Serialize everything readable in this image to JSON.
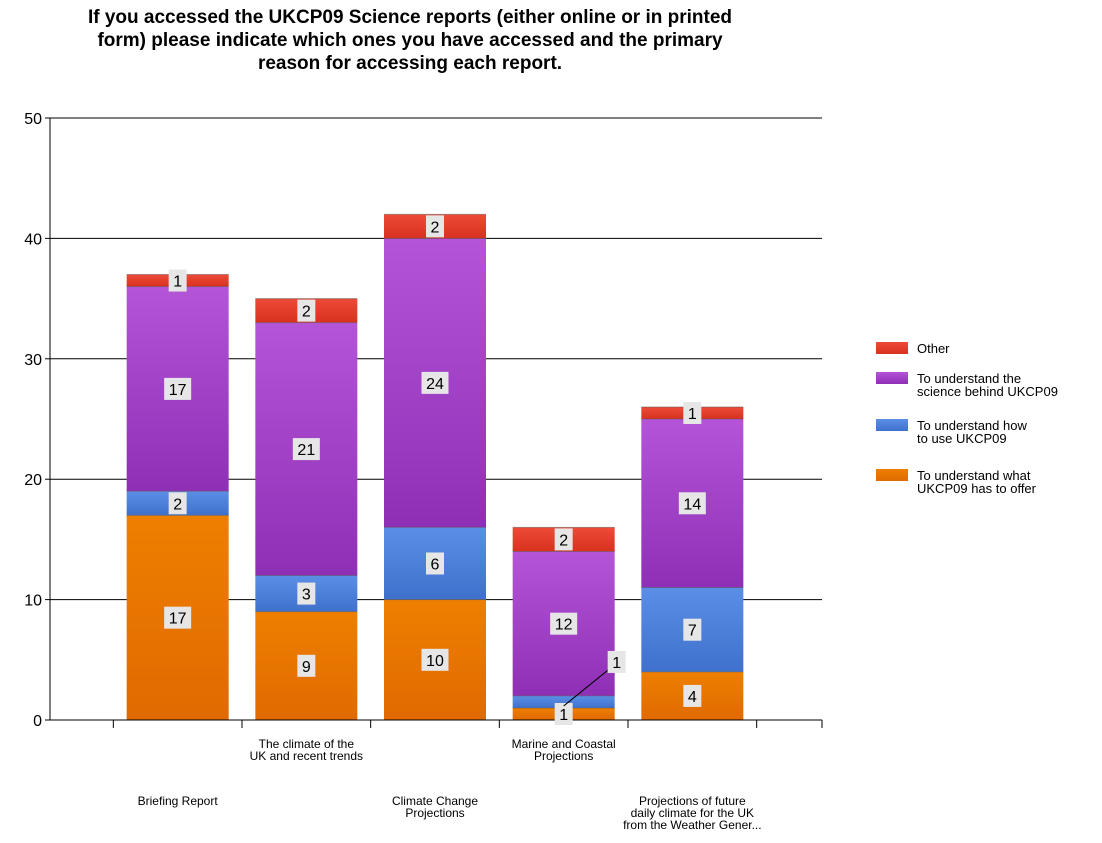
{
  "chart_data": {
    "type": "bar",
    "stacked": true,
    "title_lines": [
      "If you accessed the UKCP09 Science reports (either online or in printed",
      "form) please indicate which ones you have accessed and the primary",
      "reason for accessing each report."
    ],
    "categories": [
      [
        "Briefing Report"
      ],
      [
        "The climate of the",
        "UK and recent trends"
      ],
      [
        "Climate Change",
        "Projections"
      ],
      [
        "Marine and Coastal",
        "Projections"
      ],
      [
        "Projections of future",
        "daily climate for the UK",
        "from the Weather Gener..."
      ]
    ],
    "series": [
      {
        "name": "To understand what UKCP09 has to offer",
        "legend_lines": [
          "To understand what",
          "UKCP09 has to offer"
        ],
        "values": [
          17,
          9,
          10,
          1,
          4
        ],
        "color": "#ee7f00",
        "color_dark": "#e06a00"
      },
      {
        "name": "To understand how to use UKCP09",
        "legend_lines": [
          "To understand how",
          "to use UKCP09"
        ],
        "values": [
          2,
          3,
          6,
          1,
          7
        ],
        "color": "#5b8fe6",
        "color_dark": "#3f71cc"
      },
      {
        "name": "To understand the science behind UKCP09",
        "legend_lines": [
          "To understand the",
          "science behind UKCP09"
        ],
        "values": [
          17,
          21,
          24,
          12,
          14
        ],
        "color": "#b455d8",
        "color_dark": "#8e2fb5"
      },
      {
        "name": "Other",
        "legend_lines": [
          "Other"
        ],
        "values": [
          1,
          2,
          2,
          2,
          1
        ],
        "color": "#ee4a38",
        "color_dark": "#d8321f"
      }
    ],
    "ylim": [
      0,
      50
    ],
    "yticks": [
      0,
      10,
      20,
      30,
      40,
      50
    ],
    "xlabel": "",
    "ylabel": "",
    "grid": true,
    "legend": "right"
  }
}
